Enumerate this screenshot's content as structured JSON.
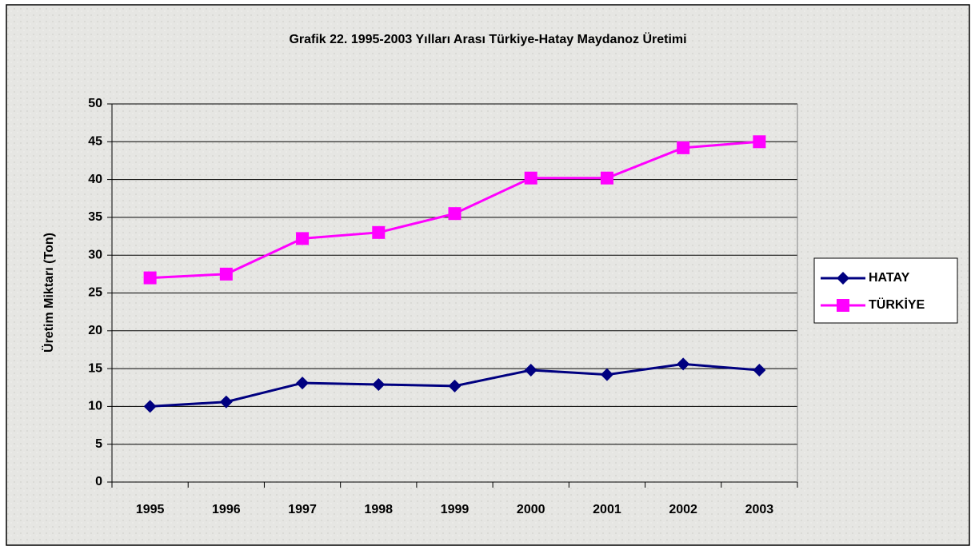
{
  "chart_data": {
    "type": "line",
    "title": "Grafik 22. 1995-2003 Yılları Arası Türkiye-Hatay Maydanoz Üretimi",
    "y_label": "Üretim Miktarı (Ton)",
    "categories": [
      "1995",
      "1996",
      "1997",
      "1998",
      "1999",
      "2000",
      "2001",
      "2002",
      "2003"
    ],
    "series": [
      {
        "name": "HATAY",
        "color": "#000080",
        "marker": "diamond",
        "values": [
          10,
          10.6,
          13.1,
          12.9,
          12.7,
          14.8,
          14.2,
          15.6,
          14.8
        ]
      },
      {
        "name": "TÜRKİYE",
        "color": "#ff00ff",
        "marker": "square",
        "values": [
          27,
          27.5,
          32.2,
          33,
          35.5,
          40.2,
          40.2,
          44.2,
          45
        ]
      }
    ],
    "ylim": [
      0,
      50
    ],
    "yticks": [
      0,
      5,
      10,
      15,
      20,
      25,
      30,
      35,
      40,
      45,
      50
    ],
    "grid": true,
    "legend": "right"
  }
}
